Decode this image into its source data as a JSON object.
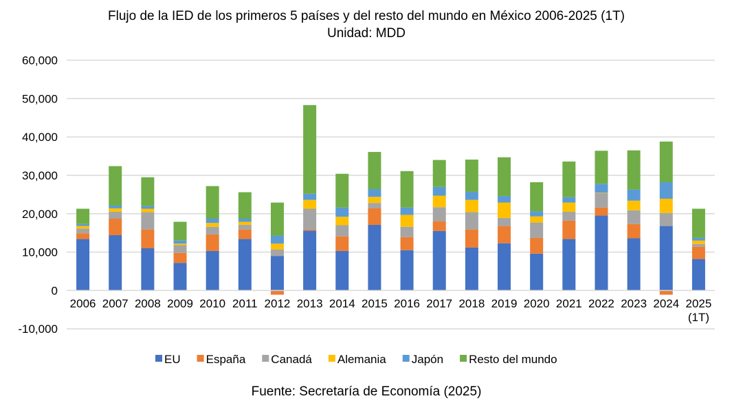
{
  "chart_data": {
    "type": "bar",
    "stacked": true,
    "title": "Flujo de la IED de los primeros 5 países y del resto del mundo en México 2006-2025 (1T)",
    "subtitle": "Unidad: MDD",
    "source": "Fuente: Secretaría de Economía (2025)",
    "xlabel": "",
    "ylabel": "",
    "ylim": [
      -10000,
      60000
    ],
    "yticks": [
      -10000,
      0,
      10000,
      20000,
      30000,
      40000,
      50000,
      60000
    ],
    "ytick_labels": [
      "-10,000",
      "0",
      "10,000",
      "20,000",
      "30,000",
      "40,000",
      "50,000",
      "60,000"
    ],
    "grid": true,
    "legend_position": "bottom",
    "categories": [
      "2006",
      "2007",
      "2008",
      "2009",
      "2010",
      "2011",
      "2012",
      "2013",
      "2014",
      "2015",
      "2016",
      "2017",
      "2018",
      "2019",
      "2020",
      "2021",
      "2022",
      "2023",
      "2024",
      "2025|(1T)"
    ],
    "series": [
      {
        "name": "EU",
        "color": "#4472C4",
        "values": [
          13400,
          14400,
          11000,
          7200,
          10300,
          13400,
          9000,
          15600,
          10300,
          17100,
          10500,
          15500,
          11200,
          12300,
          9600,
          13400,
          19500,
          13600,
          16800,
          8200
        ]
      },
      {
        "name": "España",
        "color": "#ED7D31",
        "values": [
          1500,
          4300,
          4900,
          2600,
          4300,
          2500,
          -1100,
          300,
          3800,
          4300,
          3400,
          2500,
          4700,
          4500,
          4100,
          4800,
          2100,
          3700,
          -1100,
          3200
        ]
      },
      {
        "name": "Canadá",
        "color": "#A5A5A5",
        "values": [
          1200,
          1800,
          4500,
          2000,
          2000,
          1200,
          1700,
          5400,
          2900,
          1400,
          2700,
          3700,
          4500,
          2100,
          4000,
          2300,
          3800,
          3600,
          3400,
          700
        ]
      },
      {
        "name": "Alemania",
        "color": "#FFC000",
        "values": [
          700,
          900,
          900,
          400,
          1000,
          800,
          1500,
          2300,
          2200,
          1600,
          3100,
          3000,
          3200,
          4000,
          1600,
          2400,
          100,
          2500,
          3700,
          900
        ]
      },
      {
        "name": "Japón",
        "color": "#5B9BD5",
        "values": [
          500,
          700,
          700,
          800,
          1100,
          800,
          2100,
          1600,
          2400,
          2000,
          1900,
          2300,
          2100,
          1700,
          1300,
          1400,
          2300,
          2900,
          4300,
          700
        ]
      },
      {
        "name": "Resto del mundo",
        "color": "#70AD47",
        "values": [
          4000,
          10300,
          7500,
          4900,
          8500,
          6900,
          8600,
          23100,
          8800,
          9700,
          9500,
          7000,
          8400,
          10100,
          7600,
          9300,
          8600,
          10200,
          10600,
          7600
        ]
      }
    ]
  }
}
